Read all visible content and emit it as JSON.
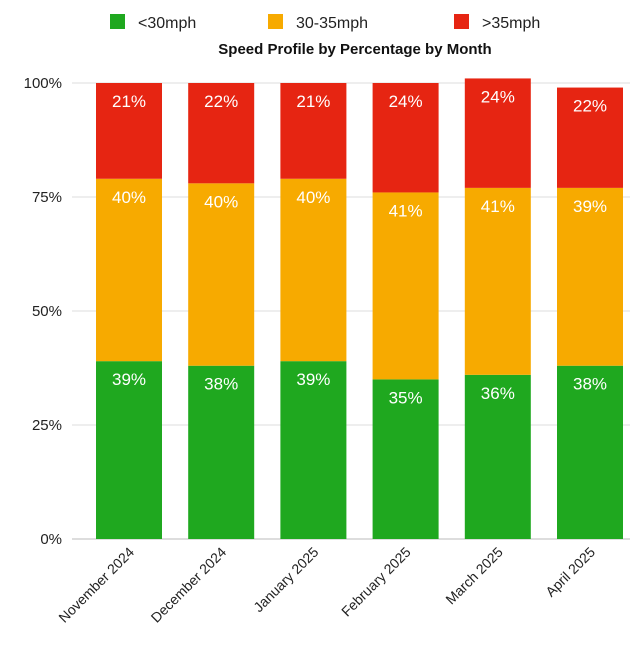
{
  "chart_data": {
    "type": "bar",
    "stacked": true,
    "title": "Speed Profile by Percentage by Month",
    "xlabel": "",
    "ylabel": "",
    "ylim": [
      0,
      100
    ],
    "yticks": [
      "0%",
      "25%",
      "50%",
      "75%",
      "100%"
    ],
    "categories": [
      "November 2024",
      "December 2024",
      "January 2025",
      "February 2025",
      "March 2025",
      "April 2025"
    ],
    "series": [
      {
        "name": "<30mph",
        "color": "#1fa81f",
        "values": [
          39,
          38,
          39,
          35,
          36,
          38
        ],
        "labels": [
          "39%",
          "38%",
          "39%",
          "35%",
          "36%",
          "38%"
        ]
      },
      {
        "name": "30-35mph",
        "color": "#f7aa00",
        "values": [
          40,
          40,
          40,
          41,
          41,
          39
        ],
        "labels": [
          "40%",
          "40%",
          "40%",
          "41%",
          "41%",
          "39%"
        ]
      },
      {
        "name": ">35mph",
        "color": "#e62512",
        "values": [
          21,
          22,
          21,
          24,
          24,
          22
        ],
        "labels": [
          "21%",
          "22%",
          "21%",
          "24%",
          "24%",
          "22%"
        ]
      }
    ],
    "legend": "top",
    "grid": true
  }
}
